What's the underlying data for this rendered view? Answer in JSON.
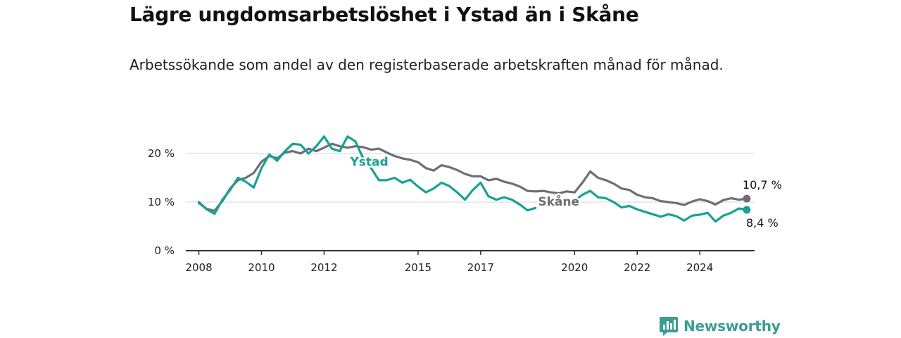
{
  "title": "Lägre ungdomsarbetslöshet i Ystad än i Skåne",
  "subtitle": "Arbetssökande som andel av den registerbaserade arbetskraften månad för månad.",
  "brand": {
    "name": "Newsworthy",
    "icon": "newsworthy-bar-chart-logo-icon"
  },
  "colors": {
    "skane": "#6f6e72",
    "ystad": "#16a295",
    "grid": "#dddddd",
    "axis": "#333333"
  },
  "chart_data": {
    "type": "line",
    "title": "Lägre ungdomsarbetslöshet i Ystad än i Skåne",
    "xlabel": "",
    "ylabel": "",
    "ylim": [
      0,
      20
    ],
    "y_ticks": [
      {
        "value": 0,
        "label": "0 %"
      },
      {
        "value": 10,
        "label": "10 %"
      },
      {
        "value": 20,
        "label": "20 %"
      }
    ],
    "x_range": [
      "2007-08",
      "2025-10"
    ],
    "x_ticks": [
      {
        "date": "2008-01",
        "label": "2008"
      },
      {
        "date": "2010-01",
        "label": "2010"
      },
      {
        "date": "2012-01",
        "label": "2012"
      },
      {
        "date": "2015-01",
        "label": "2015"
      },
      {
        "date": "2017-01",
        "label": "2017"
      },
      {
        "date": "2020-01",
        "label": "2020"
      },
      {
        "date": "2022-01",
        "label": "2022"
      },
      {
        "date": "2024-01",
        "label": "2024"
      }
    ],
    "grid": true,
    "legend": "inline labels",
    "series": [
      {
        "name": "Skåne",
        "color": "#6f6e72",
        "end_label": "10,7 %",
        "points": [
          [
            "2008-01",
            9.8
          ],
          [
            "2008-04",
            8.6
          ],
          [
            "2008-07",
            8.2
          ],
          [
            "2008-10",
            10.2
          ],
          [
            "2009-01",
            12.8
          ],
          [
            "2009-04",
            14.5
          ],
          [
            "2009-07",
            15.0
          ],
          [
            "2009-10",
            16.0
          ],
          [
            "2010-01",
            18.3
          ],
          [
            "2010-04",
            19.5
          ],
          [
            "2010-07",
            19.0
          ],
          [
            "2010-10",
            20.2
          ],
          [
            "2011-01",
            20.5
          ],
          [
            "2011-04",
            20.0
          ],
          [
            "2011-07",
            21.0
          ],
          [
            "2011-10",
            20.5
          ],
          [
            "2012-01",
            21.2
          ],
          [
            "2012-04",
            22.0
          ],
          [
            "2012-07",
            21.5
          ],
          [
            "2012-10",
            21.2
          ],
          [
            "2013-01",
            21.5
          ],
          [
            "2013-04",
            21.3
          ],
          [
            "2013-07",
            20.8
          ],
          [
            "2013-10",
            21.0
          ],
          [
            "2014-01",
            20.2
          ],
          [
            "2014-04",
            19.5
          ],
          [
            "2014-07",
            19.0
          ],
          [
            "2014-10",
            18.7
          ],
          [
            "2015-01",
            18.2
          ],
          [
            "2015-04",
            17.0
          ],
          [
            "2015-07",
            16.5
          ],
          [
            "2015-10",
            17.6
          ],
          [
            "2016-01",
            17.2
          ],
          [
            "2016-04",
            16.6
          ],
          [
            "2016-07",
            15.8
          ],
          [
            "2016-10",
            15.3
          ],
          [
            "2017-01",
            15.3
          ],
          [
            "2017-04",
            14.5
          ],
          [
            "2017-07",
            14.8
          ],
          [
            "2017-10",
            14.2
          ],
          [
            "2018-01",
            13.8
          ],
          [
            "2018-04",
            13.2
          ],
          [
            "2018-07",
            12.3
          ],
          [
            "2018-10",
            12.2
          ],
          [
            "2019-01",
            12.3
          ],
          [
            "2019-04",
            12.0
          ],
          [
            "2019-07",
            11.8
          ],
          [
            "2019-10",
            12.2
          ],
          [
            "2020-01",
            12.0
          ],
          [
            "2020-04",
            14.0
          ],
          [
            "2020-07",
            16.3
          ],
          [
            "2020-10",
            15.0
          ],
          [
            "2021-01",
            14.5
          ],
          [
            "2021-04",
            13.8
          ],
          [
            "2021-07",
            12.8
          ],
          [
            "2021-10",
            12.5
          ],
          [
            "2022-01",
            11.5
          ],
          [
            "2022-04",
            11.0
          ],
          [
            "2022-07",
            10.8
          ],
          [
            "2022-10",
            10.2
          ],
          [
            "2023-01",
            10.0
          ],
          [
            "2023-04",
            9.8
          ],
          [
            "2023-07",
            9.4
          ],
          [
            "2023-10",
            10.1
          ],
          [
            "2024-01",
            10.6
          ],
          [
            "2024-04",
            10.2
          ],
          [
            "2024-07",
            9.5
          ],
          [
            "2024-10",
            10.4
          ],
          [
            "2025-01",
            10.8
          ],
          [
            "2025-04",
            10.5
          ],
          [
            "2025-07",
            10.7
          ]
        ]
      },
      {
        "name": "Ystad",
        "color": "#16a295",
        "end_label": "8,4 %",
        "points": [
          [
            "2008-01",
            10.0
          ],
          [
            "2008-04",
            8.5
          ],
          [
            "2008-07",
            7.6
          ],
          [
            "2008-10",
            10.5
          ],
          [
            "2009-01",
            12.5
          ],
          [
            "2009-04",
            15.0
          ],
          [
            "2009-07",
            14.2
          ],
          [
            "2009-10",
            13.0
          ],
          [
            "2010-01",
            17.0
          ],
          [
            "2010-04",
            19.8
          ],
          [
            "2010-07",
            18.5
          ],
          [
            "2010-10",
            20.5
          ],
          [
            "2011-01",
            22.0
          ],
          [
            "2011-04",
            21.8
          ],
          [
            "2011-07",
            20.0
          ],
          [
            "2011-10",
            21.5
          ],
          [
            "2012-01",
            23.5
          ],
          [
            "2012-04",
            21.0
          ],
          [
            "2012-07",
            20.5
          ],
          [
            "2012-10",
            23.5
          ],
          [
            "2013-01",
            22.5
          ],
          [
            "2013-04",
            19.0
          ],
          [
            "2013-07",
            17.0
          ],
          [
            "2013-10",
            14.5
          ],
          [
            "2014-01",
            14.5
          ],
          [
            "2014-04",
            15.0
          ],
          [
            "2014-07",
            14.0
          ],
          [
            "2014-10",
            14.6
          ],
          [
            "2015-01",
            13.2
          ],
          [
            "2015-04",
            12.0
          ],
          [
            "2015-07",
            12.8
          ],
          [
            "2015-10",
            14.0
          ],
          [
            "2016-01",
            13.3
          ],
          [
            "2016-04",
            12.0
          ],
          [
            "2016-07",
            10.5
          ],
          [
            "2016-10",
            12.5
          ],
          [
            "2017-01",
            14.0
          ],
          [
            "2017-04",
            11.2
          ],
          [
            "2017-07",
            10.5
          ],
          [
            "2017-10",
            11.0
          ],
          [
            "2018-01",
            10.5
          ],
          [
            "2018-04",
            9.5
          ],
          [
            "2018-07",
            8.3
          ],
          [
            "2018-10",
            8.8
          ],
          [
            "2019-01",
            null
          ],
          [
            "2019-04",
            null
          ],
          [
            "2019-07",
            null
          ],
          [
            "2019-10",
            null
          ],
          [
            "2020-01",
            10.3
          ],
          [
            "2020-04",
            11.5
          ],
          [
            "2020-07",
            12.3
          ],
          [
            "2020-10",
            11.0
          ],
          [
            "2021-01",
            10.8
          ],
          [
            "2021-04",
            10.0
          ],
          [
            "2021-07",
            8.9
          ],
          [
            "2021-10",
            9.2
          ],
          [
            "2022-01",
            8.5
          ],
          [
            "2022-04",
            8.0
          ],
          [
            "2022-07",
            7.5
          ],
          [
            "2022-10",
            7.0
          ],
          [
            "2023-01",
            7.5
          ],
          [
            "2023-04",
            7.1
          ],
          [
            "2023-07",
            6.2
          ],
          [
            "2023-10",
            7.2
          ],
          [
            "2024-01",
            7.4
          ],
          [
            "2024-04",
            7.8
          ],
          [
            "2024-07",
            6.0
          ],
          [
            "2024-10",
            7.2
          ],
          [
            "2025-01",
            7.8
          ],
          [
            "2025-04",
            8.7
          ],
          [
            "2025-07",
            8.4
          ]
        ]
      }
    ]
  }
}
